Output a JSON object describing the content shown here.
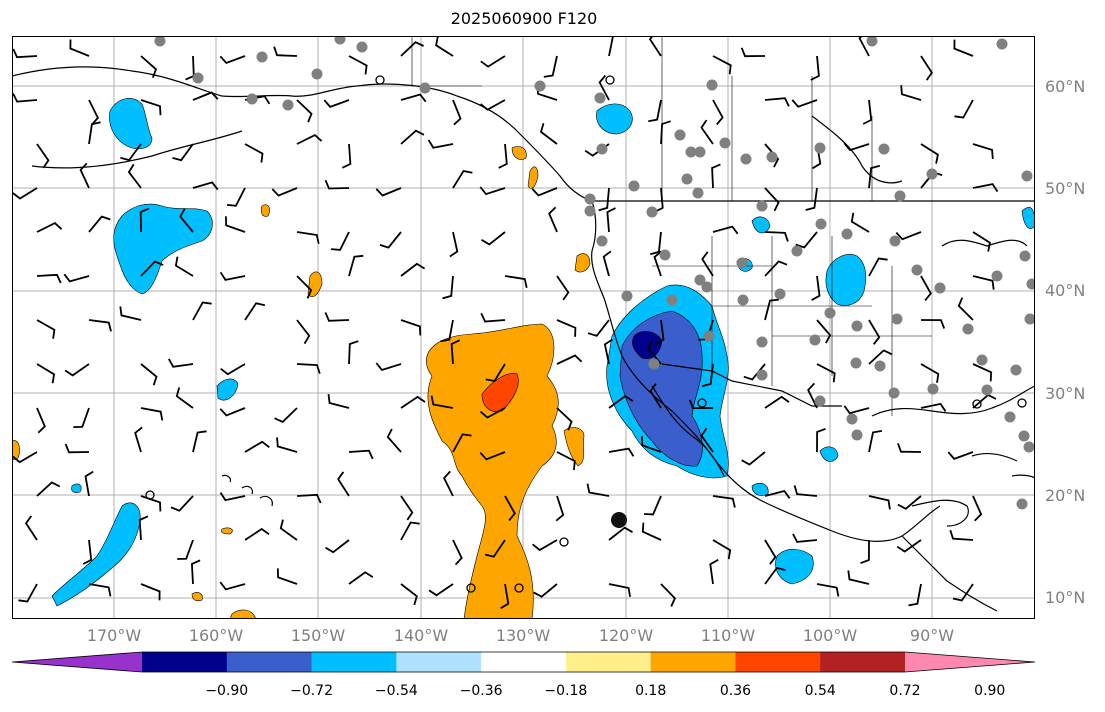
{
  "title": "2025060900 F120",
  "lat_labels": [
    "60°N",
    "50°N",
    "40°N",
    "30°N",
    "20°N",
    "10°N"
  ],
  "lon_labels": [
    "170°W",
    "160°W",
    "150°W",
    "140°W",
    "130°W",
    "120°W",
    "110°W",
    "100°W",
    "90°W"
  ],
  "colorbar": {
    "ticks": [
      "−0.90",
      "−0.72",
      "−0.54",
      "−0.36",
      "−0.18",
      "0.18",
      "0.36",
      "0.54",
      "0.72",
      "0.90"
    ],
    "colors": [
      "#9932cc",
      "#00008b",
      "#3a5fcd",
      "#00bfff",
      "#b0e2ff",
      "#ffffff",
      "#fff08c",
      "#ffa500",
      "#ff4500",
      "#b22222",
      "#ff88b0"
    ],
    "extend": "both"
  },
  "legend_placement": "bottom",
  "grid": true
}
